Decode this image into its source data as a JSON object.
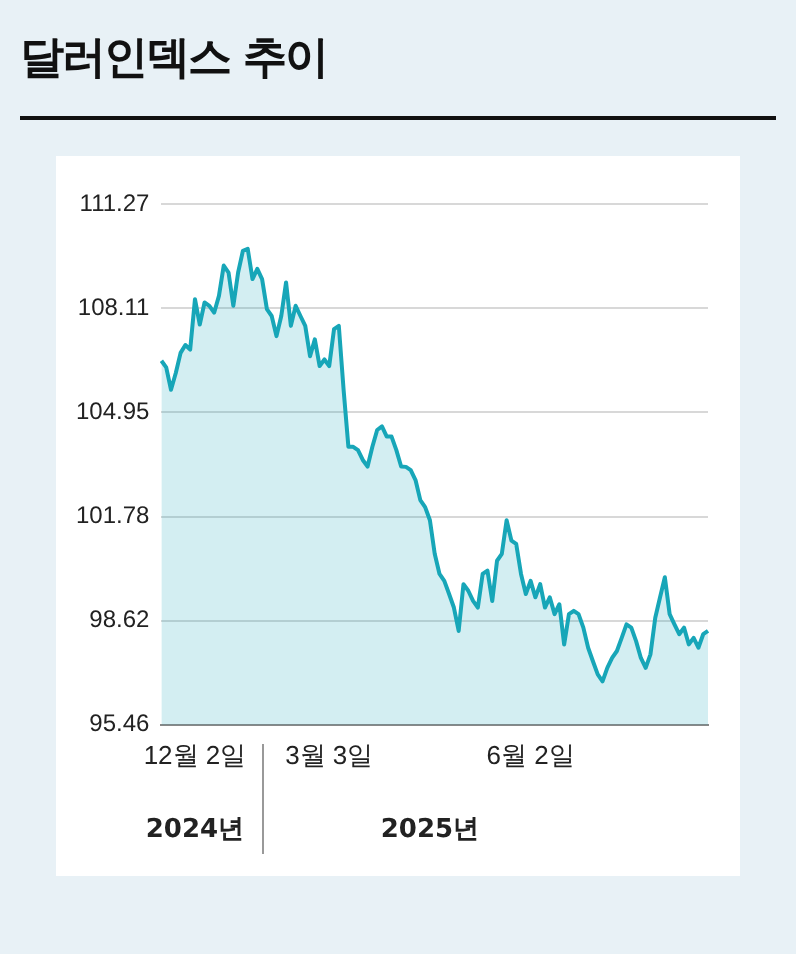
{
  "chart_data": {
    "type": "area",
    "title": "달러인덱스 추이",
    "categories": [
      null,
      null,
      null,
      null,
      null,
      null,
      null,
      "12월 2일",
      null,
      null,
      null,
      null,
      null,
      null,
      null,
      null,
      null,
      null,
      null,
      null,
      null,
      null,
      null,
      null,
      null,
      null,
      null,
      null,
      null,
      null,
      null,
      null,
      null,
      null,
      null,
      "3월 3일",
      null,
      null,
      null,
      null,
      null,
      null,
      null,
      null,
      null,
      null,
      null,
      null,
      null,
      null,
      null,
      null,
      null,
      null,
      null,
      null,
      null,
      null,
      null,
      null,
      null,
      null,
      null,
      null,
      null,
      null,
      null,
      null,
      null,
      null,
      null,
      null,
      null,
      null,
      null,
      null,
      null,
      "6월 2일",
      null,
      null,
      null,
      null,
      null,
      null,
      null,
      null,
      null,
      null,
      null,
      null,
      null,
      null,
      null,
      null,
      null,
      null,
      null,
      null,
      null,
      null,
      null,
      null,
      null,
      null,
      null,
      null,
      null,
      null,
      null,
      null,
      null,
      null,
      null,
      null,
      null
    ],
    "series": [
      {
        "color": "#17a6b8",
        "values": [
          106.51,
          106.31,
          105.63,
          106.14,
          106.75,
          106.99,
          106.85,
          108.38,
          107.61,
          108.28,
          108.18,
          107.97,
          108.48,
          109.4,
          109.19,
          108.18,
          109.19,
          109.85,
          109.91,
          108.99,
          109.3,
          108.99,
          108.08,
          107.87,
          107.26,
          107.87,
          108.89,
          107.57,
          108.18,
          107.87,
          107.57,
          106.65,
          107.16,
          106.35,
          106.55,
          106.35,
          107.47,
          107.57,
          105.63,
          103.9,
          103.9,
          103.8,
          103.5,
          103.3,
          103.9,
          104.41,
          104.52,
          104.21,
          104.21,
          103.8,
          103.3,
          103.29,
          103.19,
          102.89,
          102.28,
          102.07,
          101.67,
          100.65,
          100.04,
          99.83,
          99.43,
          99.02,
          98.31,
          99.73,
          99.53,
          99.22,
          99.02,
          100.04,
          100.14,
          99.22,
          100.44,
          100.65,
          101.67,
          101.05,
          100.95,
          100.04,
          99.43,
          99.83,
          99.33,
          99.73,
          99.02,
          99.33,
          98.82,
          99.12,
          97.9,
          98.82,
          98.92,
          98.82,
          98.41,
          97.8,
          97.39,
          96.99,
          96.78,
          97.19,
          97.49,
          97.7,
          98.1,
          98.51,
          98.41,
          98.0,
          97.49,
          97.19,
          97.6,
          98.71,
          99.33,
          99.94,
          98.82,
          98.51,
          98.21,
          98.41,
          97.9,
          98.1,
          97.8,
          98.21,
          98.31
        ]
      }
    ],
    "ylim": [
      95.46,
      111.27
    ],
    "yticks": [
      95.46,
      98.62,
      101.78,
      104.95,
      108.11,
      111.27
    ],
    "grid": "y",
    "annotations": [
      "2024년",
      "2025년"
    ]
  }
}
